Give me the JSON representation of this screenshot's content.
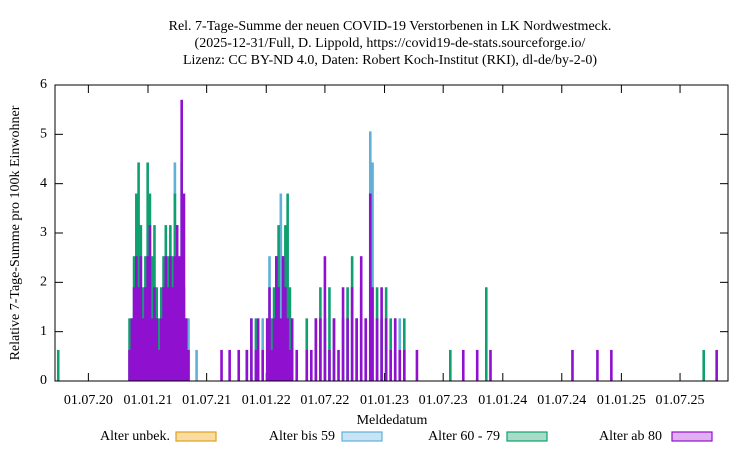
{
  "chart_data": {
    "type": "impulse-bar",
    "title_lines": [
      "Rel. 7-Tage-Summe der neuen COVID-19 Verstorbenen in LK Nordwestmeck.",
      "(2025-12-31/Full, D. Lippold, https://covid19-de-stats.sourceforge.io/",
      "Lizenz: CC BY-ND 4.0, Daten: Robert Koch-Institut (RKI), dl-de/by-2-0)"
    ],
    "x_label": "Meldedatum",
    "y_label": "Relative 7-Tage-Summe pro 100k Einwohner",
    "xlim": [
      "2020-03-20",
      "2025-11-26"
    ],
    "xticks": [
      {
        "value": "2020-07-01",
        "label": "01.07.20"
      },
      {
        "value": "2021-01-01",
        "label": "01.01.21"
      },
      {
        "value": "2021-07-01",
        "label": "01.07.21"
      },
      {
        "value": "2022-01-01",
        "label": "01.01.22"
      },
      {
        "value": "2022-07-01",
        "label": "01.07.22"
      },
      {
        "value": "2023-01-01",
        "label": "01.01.23"
      },
      {
        "value": "2023-07-01",
        "label": "01.07.23"
      },
      {
        "value": "2024-01-01",
        "label": "01.01.24"
      },
      {
        "value": "2024-07-01",
        "label": "01.07.24"
      },
      {
        "value": "2025-01-01",
        "label": "01.01.25"
      },
      {
        "value": "2025-07-01",
        "label": "01.07.25"
      }
    ],
    "ylim": [
      0,
      6
    ],
    "yticks": [
      0,
      1,
      2,
      3,
      4,
      5,
      6
    ],
    "legend": "bottom",
    "x": [
      "2020-03-30",
      "2020-11-05",
      "2020-11-12",
      "2020-11-19",
      "2020-11-26",
      "2020-12-03",
      "2020-12-10",
      "2020-12-17",
      "2020-12-24",
      "2020-12-31",
      "2021-01-07",
      "2021-01-14",
      "2021-01-21",
      "2021-01-28",
      "2021-02-04",
      "2021-02-11",
      "2021-02-18",
      "2021-02-25",
      "2021-03-04",
      "2021-03-11",
      "2021-03-18",
      "2021-03-25",
      "2021-04-01",
      "2021-04-08",
      "2021-04-15",
      "2021-04-22",
      "2021-04-29",
      "2021-05-06",
      "2021-05-31",
      "2021-08-16",
      "2021-09-10",
      "2021-10-08",
      "2021-11-02",
      "2021-11-16",
      "2021-11-30",
      "2021-12-07",
      "2021-12-21",
      "2022-01-04",
      "2022-01-11",
      "2022-01-18",
      "2022-01-25",
      "2022-02-01",
      "2022-02-08",
      "2022-02-15",
      "2022-02-22",
      "2022-03-01",
      "2022-03-08",
      "2022-03-15",
      "2022-03-22",
      "2022-04-05",
      "2022-05-06",
      "2022-05-20",
      "2022-06-03",
      "2022-06-17",
      "2022-07-01",
      "2022-07-15",
      "2022-07-29",
      "2022-08-12",
      "2022-08-26",
      "2022-09-09",
      "2022-09-23",
      "2022-10-07",
      "2022-10-21",
      "2022-11-04",
      "2022-11-18",
      "2022-11-25",
      "2022-12-09",
      "2022-12-23",
      "2023-01-06",
      "2023-01-20",
      "2023-02-03",
      "2023-02-17",
      "2023-03-03",
      "2023-04-11",
      "2023-07-23",
      "2023-09-01",
      "2023-10-14",
      "2023-11-11",
      "2023-11-24",
      "2024-08-03",
      "2024-10-19",
      "2024-12-01",
      "2025-09-12",
      "2025-10-22"
    ],
    "series": [
      {
        "name": "Alter unbek.",
        "color": "#e0a020",
        "fill": "#f8dca0",
        "values": [
          0,
          0,
          0,
          0,
          0,
          0,
          0,
          0,
          0,
          0,
          0,
          0,
          0,
          0,
          0,
          0,
          0,
          0,
          0,
          0,
          0,
          0,
          0,
          0,
          0,
          0,
          0,
          0,
          0,
          0,
          0,
          0,
          0,
          0,
          0,
          0,
          0,
          0,
          0,
          0,
          0,
          0,
          0,
          0,
          0,
          0,
          0,
          0,
          0,
          0,
          0,
          0,
          0,
          0,
          0,
          0,
          0,
          0,
          0,
          0,
          0,
          0,
          0,
          0,
          0,
          0,
          0,
          0,
          0,
          0,
          0,
          0,
          0,
          0,
          0,
          0,
          0,
          0,
          0,
          0,
          0,
          0,
          0,
          0
        ]
      },
      {
        "name": "Alter bis 59",
        "color": "#60b0d8",
        "fill": "#c8e4f4",
        "values": [
          0,
          0,
          0,
          0,
          0,
          0,
          0,
          0,
          0.63,
          0,
          0,
          0,
          0,
          0,
          0,
          0.63,
          0,
          0,
          1.27,
          0,
          0,
          4.43,
          0,
          0,
          0,
          0,
          1.27,
          1.27,
          0.63,
          0,
          0,
          0,
          0,
          1.27,
          0,
          0,
          1.27,
          0,
          2.53,
          0,
          0,
          0,
          0,
          3.8,
          0,
          0,
          0,
          0,
          0,
          0,
          0,
          0,
          0,
          0,
          0,
          0,
          0,
          0,
          0,
          0,
          0,
          0,
          0,
          0,
          5.06,
          4.43,
          0,
          0,
          0,
          0,
          0,
          1.27,
          0,
          0,
          0,
          0,
          0,
          0,
          0,
          0,
          0,
          0,
          0,
          0
        ]
      },
      {
        "name": "Alter 60 - 79",
        "color": "#10a070",
        "fill": "#a8dcc8",
        "values": [
          0.63,
          1.27,
          1.27,
          2.53,
          3.8,
          4.43,
          3.16,
          1.9,
          2.53,
          4.43,
          3.8,
          2.53,
          3.16,
          1.9,
          1.27,
          1.9,
          2.53,
          3.16,
          2.53,
          3.16,
          2.53,
          3.8,
          3.16,
          1.9,
          4.43,
          1.9,
          0.63,
          0,
          0,
          0,
          0,
          0,
          0.63,
          0,
          1.27,
          0.63,
          0,
          1.27,
          0,
          1.27,
          1.9,
          2.53,
          3.16,
          0,
          2.53,
          3.16,
          3.8,
          1.9,
          1.27,
          0,
          1.27,
          0,
          1.27,
          1.9,
          1.27,
          1.9,
          1.27,
          0,
          1.27,
          1.9,
          2.53,
          1.27,
          1.9,
          1.27,
          3.8,
          0,
          1.9,
          1.27,
          1.9,
          1.27,
          1.27,
          0,
          1.27,
          0,
          0.63,
          0,
          0,
          1.9,
          0,
          0,
          0,
          0,
          0.63,
          0
        ]
      },
      {
        "name": "Alter ab 80",
        "color": "#9010d0",
        "fill": "#e0b0f0",
        "values": [
          0,
          0.63,
          1.27,
          1.9,
          2.53,
          1.9,
          2.53,
          1.27,
          1.9,
          2.53,
          3.16,
          1.27,
          1.9,
          1.27,
          0.63,
          1.27,
          1.9,
          2.53,
          1.9,
          2.53,
          1.9,
          2.53,
          3.16,
          2.53,
          5.7,
          3.8,
          1.27,
          0.63,
          0,
          0.63,
          0.63,
          0.63,
          0.63,
          1.27,
          0.63,
          1.27,
          0.63,
          1.27,
          1.9,
          0.63,
          1.27,
          2.53,
          1.9,
          1.27,
          2.53,
          1.9,
          1.27,
          0.63,
          1.27,
          0.63,
          0.63,
          0.63,
          1.27,
          1.27,
          2.53,
          0.63,
          1.27,
          0.63,
          1.9,
          1.27,
          1.9,
          1.27,
          2.53,
          1.27,
          3.8,
          1.9,
          1.27,
          1.9,
          1.27,
          0.63,
          1.27,
          0.63,
          0.63,
          0.63,
          0,
          0.63,
          0.63,
          0,
          0.63,
          0.63,
          0.63,
          0.63,
          0,
          0.63
        ]
      }
    ]
  }
}
